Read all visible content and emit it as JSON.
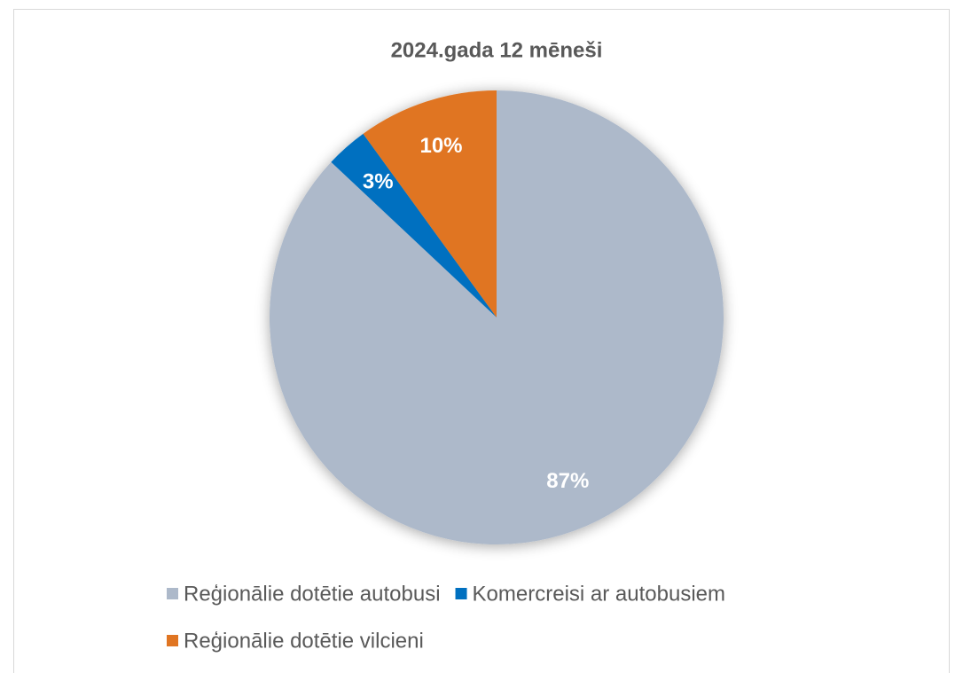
{
  "chart_data": {
    "type": "pie",
    "title": "2024.gada 12 mēneši",
    "categories": [
      "Reģionālie dotētie autobusi",
      "Komercreisi ar autobusiem",
      "Reģionālie dotētie vilcieni"
    ],
    "values": [
      87,
      3,
      10
    ],
    "value_labels": [
      "87%",
      "3%",
      "10%"
    ],
    "colors": [
      "#adb9ca",
      "#0070c0",
      "#e07522"
    ]
  }
}
